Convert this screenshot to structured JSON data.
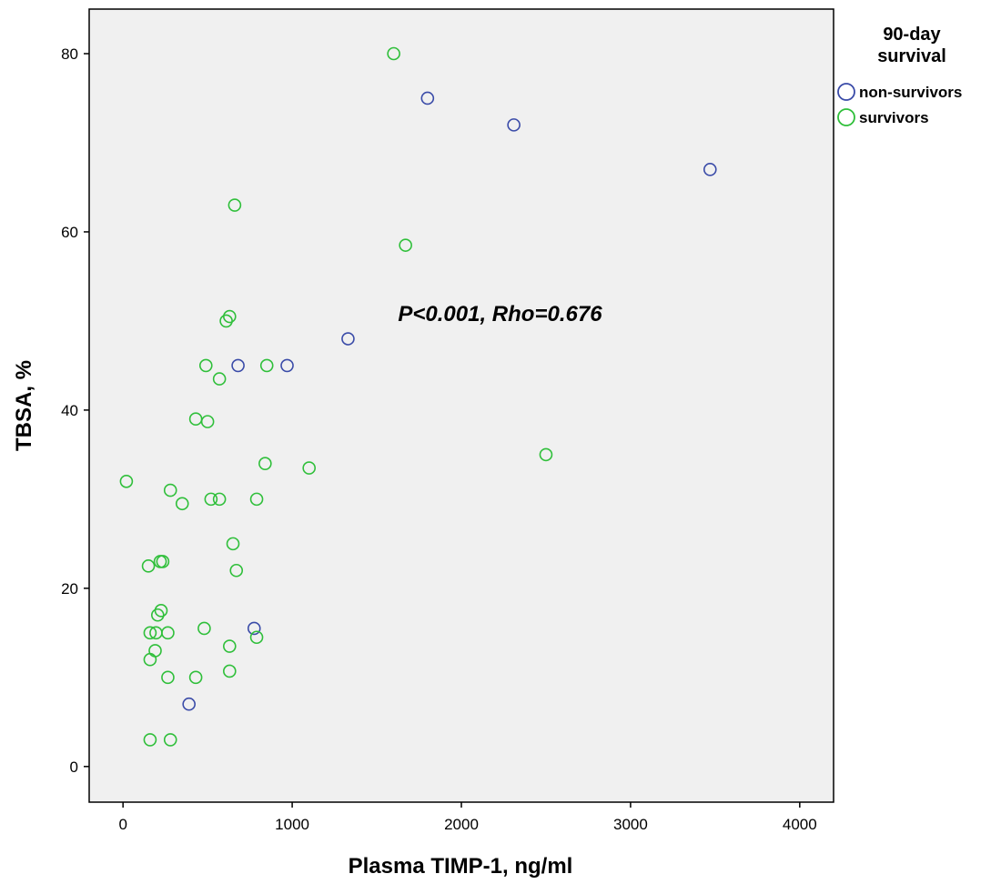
{
  "chart_data": {
    "type": "scatter",
    "xlabel": "Plasma TIMP-1, ng/ml",
    "ylabel": "TBSA, %",
    "xlim": [
      -200,
      4200
    ],
    "ylim": [
      -4,
      85
    ],
    "x_ticks": [
      0,
      1000,
      2000,
      3000,
      4000
    ],
    "y_ticks": [
      0,
      20,
      40,
      60,
      80
    ],
    "grid": false,
    "legend_title_line1": "90-day",
    "legend_title_line2": "survival",
    "legend_position": "right",
    "annotation": "P<0.001, Rho=0.676",
    "annotation_x": 2250,
    "annotation_y": 50.8,
    "series": [
      {
        "name": "non-survivors",
        "color": "#3a4ba8",
        "points": [
          [
            1800,
            75
          ],
          [
            2310,
            72
          ],
          [
            3470,
            67
          ],
          [
            1330,
            48
          ],
          [
            680,
            45
          ],
          [
            970,
            45
          ],
          [
            775,
            15.5
          ],
          [
            390,
            7
          ]
        ]
      },
      {
        "name": "survivors",
        "color": "#2fbf3a",
        "points": [
          [
            1600,
            80
          ],
          [
            660,
            63
          ],
          [
            1670,
            58.5
          ],
          [
            610,
            50
          ],
          [
            630,
            50.5
          ],
          [
            490,
            45
          ],
          [
            850,
            45
          ],
          [
            570,
            43.5
          ],
          [
            430,
            39
          ],
          [
            500,
            38.7
          ],
          [
            2500,
            35
          ],
          [
            20,
            32
          ],
          [
            840,
            34
          ],
          [
            1100,
            33.5
          ],
          [
            280,
            31
          ],
          [
            350,
            29.5
          ],
          [
            520,
            30
          ],
          [
            570,
            30
          ],
          [
            790,
            30
          ],
          [
            650,
            25
          ],
          [
            150,
            22.5
          ],
          [
            220,
            23
          ],
          [
            235,
            23
          ],
          [
            670,
            22
          ],
          [
            225,
            17.5
          ],
          [
            205,
            17
          ],
          [
            160,
            15
          ],
          [
            195,
            15
          ],
          [
            265,
            15
          ],
          [
            480,
            15.5
          ],
          [
            630,
            13.5
          ],
          [
            790,
            14.5
          ],
          [
            190,
            13
          ],
          [
            160,
            12
          ],
          [
            265,
            10
          ],
          [
            430,
            10
          ],
          [
            630,
            10.7
          ],
          [
            160,
            3
          ],
          [
            280,
            3
          ]
        ]
      }
    ]
  }
}
